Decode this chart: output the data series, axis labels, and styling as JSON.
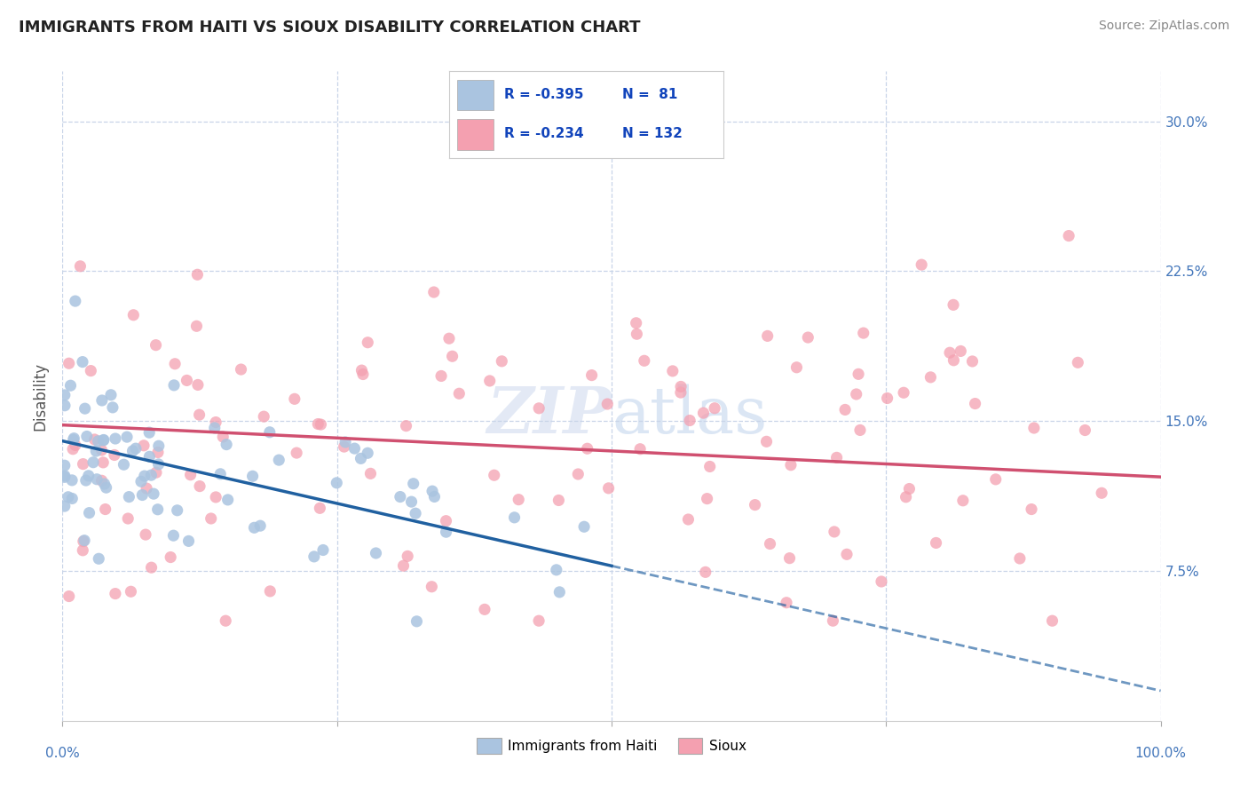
{
  "title": "IMMIGRANTS FROM HAITI VS SIOUX DISABILITY CORRELATION CHART",
  "source": "Source: ZipAtlas.com",
  "ylabel": "Disability",
  "xlim": [
    0.0,
    100.0
  ],
  "ylim": [
    0.0,
    32.5
  ],
  "yticks": [
    7.5,
    15.0,
    22.5,
    30.0
  ],
  "xticks": [
    0.0,
    25.0,
    50.0,
    75.0,
    100.0
  ],
  "xtick_labels": [
    "0.0%",
    "",
    "",
    "",
    "100.0%"
  ],
  "ytick_labels": [
    "7.5%",
    "15.0%",
    "22.5%",
    "30.0%"
  ],
  "haiti_color": "#aac4e0",
  "sioux_color": "#f4a0b0",
  "haiti_line_color": "#2060a0",
  "sioux_line_color": "#d05070",
  "haiti_R": -0.395,
  "haiti_N": 81,
  "sioux_R": -0.234,
  "sioux_N": 132,
  "background_color": "#ffffff",
  "grid_color": "#c8d4e8",
  "title_color": "#222222",
  "axis_label_color": "#555555",
  "tick_color": "#4477bb",
  "legend_R_color": "#1144bb",
  "watermark_color": "#ccd8ee",
  "haiti_line_y0": 14.0,
  "haiti_line_y100": 1.5,
  "sioux_line_y0": 14.8,
  "sioux_line_y100": 12.2,
  "haiti_solid_x_end": 50.0
}
